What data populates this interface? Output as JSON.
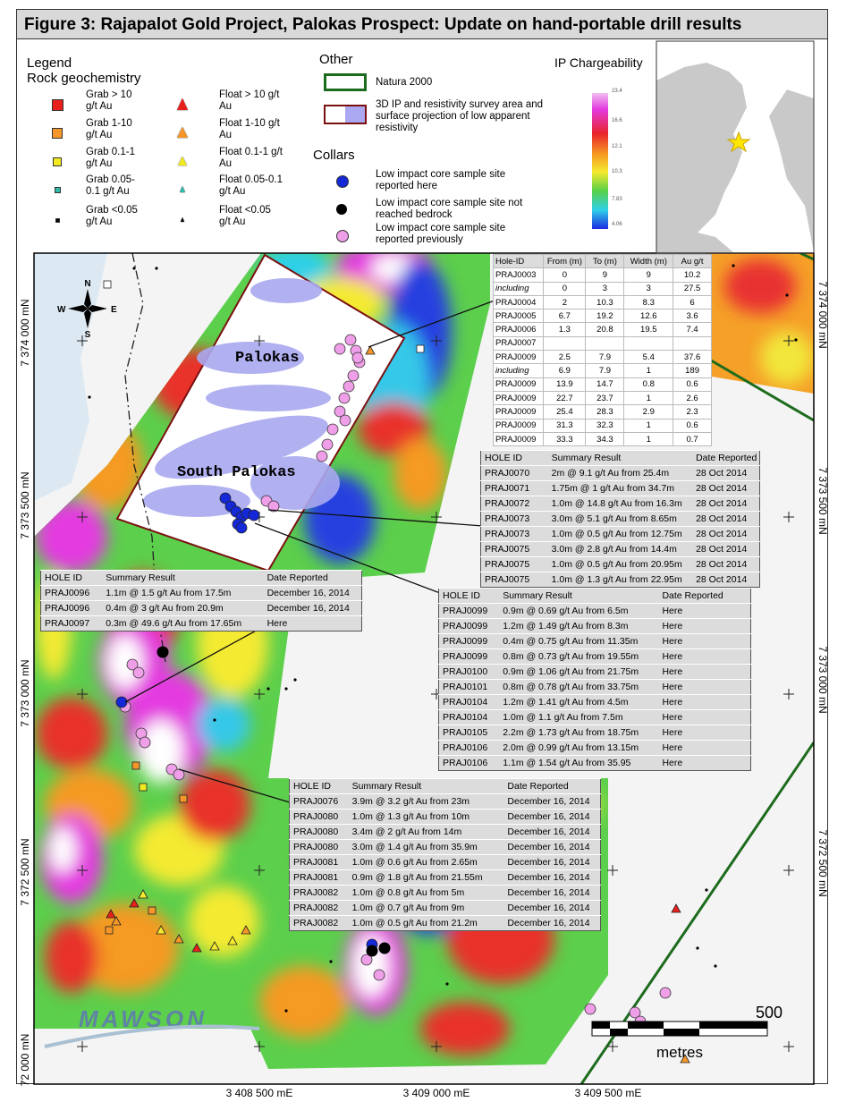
{
  "header": {
    "title": "Figure 3: Rajapalot Gold Project, Palokas Prospect: Update on hand-portable drill results"
  },
  "legend": {
    "title": "Legend",
    "subtitle": "Rock geochemistry",
    "grab": [
      "Grab > 10 g/t Au",
      "Grab 1-10 g/t Au",
      "Grab 0.1-1 g/t Au",
      "Grab 0.05-0.1 g/t Au",
      "Grab <0.05 g/t Au"
    ],
    "float": [
      "Float > 10 g/t Au",
      "Float 1-10 g/t Au",
      "Float 0.1-1 g/t Au",
      "Float 0.05-0.1 g/t Au",
      "Float <0.05 g/t Au"
    ]
  },
  "other": {
    "title": "Other",
    "items": [
      "Natura 2000",
      "3D IP and resistivity survey area and surface projection of low apparent resistivity"
    ]
  },
  "collars": {
    "title": "Collars",
    "items": [
      "Low impact core sample site reported here",
      "Low impact core sample site not reached bedrock",
      "Low impact core sample site reported previously"
    ]
  },
  "ip": {
    "title": "IP Chargeability",
    "scale": [
      "23.4",
      "16.6",
      "12.1",
      "10.3",
      "7.83",
      "4.06"
    ]
  },
  "map": {
    "labels": [
      "Palokas",
      "South Palokas"
    ],
    "northing_left": [
      "7 374 000 mN",
      "7 373 500 mN",
      "7 373 000 mN",
      "7 372 500 mN",
      "72 000 mN"
    ],
    "northing_right": [
      "7 374 000 mN",
      "7 373 500 mN",
      "7 373 000 mN",
      "7 372 500 mN"
    ],
    "easting": [
      "3 408 500 mE",
      "3 409 000 mE",
      "3 409 500 mE"
    ],
    "compass": [
      "N",
      "E",
      "S",
      "W"
    ],
    "scale": [
      "500",
      "metres"
    ],
    "logo": "MAWSON"
  },
  "tables": [
    {
      "header": [
        "Hole-ID",
        "From (m)",
        "To (m)",
        "Width (m)",
        "Au g/t"
      ],
      "rows": [
        [
          "PRAJ0003",
          "0",
          "9",
          "9",
          "10.2"
        ],
        [
          "including",
          "0",
          "3",
          "3",
          "27.5"
        ],
        [
          "PRAJ0004",
          "2",
          "10.3",
          "8.3",
          "6"
        ],
        [
          "PRAJ0005",
          "6.7",
          "19.2",
          "12.6",
          "3.6"
        ],
        [
          "PRAJ0006",
          "1.3",
          "20.8",
          "19.5",
          "7.4"
        ],
        [
          "PRAJ0007"
        ],
        [
          "PRAJ0009",
          "2.5",
          "7.9",
          "5.4",
          "37.6"
        ],
        [
          "including",
          "6.9",
          "7.9",
          "1",
          "189"
        ],
        [
          "PRAJ0009",
          "13.9",
          "14.7",
          "0.8",
          "0.6"
        ],
        [
          "PRAJ0009",
          "22.7",
          "23.7",
          "1",
          "2.6"
        ],
        [
          "PRAJ0009",
          "25.4",
          "28.3",
          "2.9",
          "2.3"
        ],
        [
          "PRAJ0009",
          "31.3",
          "32.3",
          "1",
          "0.6"
        ],
        [
          "PRAJ0009",
          "33.3",
          "34.3",
          "1",
          "0.7"
        ]
      ]
    },
    {
      "header": [
        "HOLE ID",
        "Summary Result",
        "Date Reported"
      ],
      "rows": [
        [
          "PRAJ0070",
          "2m @ 9.1 g/t Au from 25.4m",
          "28 Oct 2014"
        ],
        [
          "PRAJ0071",
          "1.75m @ 1 g/t Au from 34.7m",
          "28 Oct 2014"
        ],
        [
          "PRAJ0072",
          "1.0m @ 14.8 g/t Au from 16.3m",
          "28 Oct 2014"
        ],
        [
          "PRAJ0073",
          "3.0m @ 5.1 g/t Au from 8.65m",
          "28 Oct 2014"
        ],
        [
          "PRAJ0073",
          "1.0m @ 0.5 g/t Au from 12.75m",
          "28 Oct 2014"
        ],
        [
          "PRAJ0075",
          "3.0m @ 2.8 g/t Au from 14.4m",
          "28 Oct 2014"
        ],
        [
          "PRAJ0075",
          "1.0m @ 0.5 g/t Au from 20.95m",
          "28 Oct 2014"
        ],
        [
          "PRAJ0075",
          "1.0m @ 1.3 g/t Au from 22.95m",
          "28 Oct 2014"
        ]
      ]
    },
    {
      "header": [
        "HOLE ID",
        "Summary Result",
        "Date Reported"
      ],
      "rows": [
        [
          "PRAJ0096",
          "1.1m @ 1.5 g/t Au from 17.5m",
          "December 16, 2014"
        ],
        [
          "PRAJ0096",
          "0.4m @ 3 g/t Au from 20.9m",
          "December 16, 2014"
        ],
        [
          "PRAJ0097",
          "0.3m @ 49.6 g/t Au from 17.65m",
          "Here"
        ]
      ]
    },
    {
      "header": [
        "HOLE ID",
        "Summary Result",
        "Date Reported"
      ],
      "rows": [
        [
          "PRAJ0099",
          "0.9m @ 0.69 g/t Au from 6.5m",
          "Here"
        ],
        [
          "PRAJ0099",
          "1.2m @ 1.49 g/t Au from 8.3m",
          "Here"
        ],
        [
          "PRAJ0099",
          "0.4m @ 0.75 g/t Au from 11.35m",
          "Here"
        ],
        [
          "PRAJ0099",
          "0.8m @ 0.73 g/t Au from 19.55m",
          "Here"
        ],
        [
          "PRAJ0100",
          "0.9m @ 1.06 g/t Au from 21.75m",
          "Here"
        ],
        [
          "PRAJ0101",
          "0.8m @ 0.78 g/t Au from 33.75m",
          "Here"
        ],
        [
          "PRAJ0104",
          "1.2m @ 1.41 g/t Au from 4.5m",
          "Here"
        ],
        [
          "PRAJ0104",
          "1.0m @ 1.1 g/t Au from 7.5m",
          "Here"
        ],
        [
          "PRAJ0105",
          "2.2m @ 1.73 g/t Au from 18.75m",
          "Here"
        ],
        [
          "PRAJ0106",
          "2.0m @ 0.99 g/t Au from 13.15m",
          "Here"
        ],
        [
          "PRAJ0106",
          "1.1m @ 1.54 g/t Au from 35.95",
          "Here"
        ]
      ]
    },
    {
      "header": [
        "HOLE ID",
        "Summary Result",
        "Date Reported"
      ],
      "rows": [
        [
          "PRAJ0076",
          "3.9m @ 3.2 g/t Au from 23m",
          "December 16, 2014"
        ],
        [
          "PRAJ0080",
          "1.0m @ 1.3 g/t Au from 10m",
          "December 16, 2014"
        ],
        [
          "PRAJ0080",
          "3.4m @ 2 g/t Au from 14m",
          "December 16, 2014"
        ],
        [
          "PRAJ0080",
          "3.0m @ 1.4 g/t Au from 35.9m",
          "December 16, 2014"
        ],
        [
          "PRAJ0081",
          "1.0m @ 0.6 g/t Au from 2.65m",
          "December 16, 2014"
        ],
        [
          "PRAJ0081",
          "0.9m @ 1.8 g/t Au from 21.55m",
          "December 16, 2014"
        ],
        [
          "PRAJ0082",
          "1.0m @ 0.8 g/t Au from 5m",
          "December 16, 2014"
        ],
        [
          "PRAJ0082",
          "1.0m @ 0.7 g/t Au from 9m",
          "December 16, 2014"
        ],
        [
          "PRAJ0082",
          "1.0m @ 0.5 g/t Au from 21.2m",
          "December 16, 2014"
        ]
      ]
    }
  ]
}
